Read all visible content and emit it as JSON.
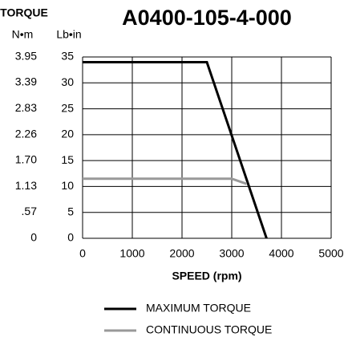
{
  "chart_data": {
    "type": "line",
    "title": "A0400-105-4-000",
    "y_axis_title": "TORQUE",
    "y2_unit": "N•m",
    "y_unit": "Lb•in",
    "x_label": "SPEED (rpm)",
    "xlim": [
      0,
      5000
    ],
    "xticks": [
      0,
      1000,
      2000,
      3000,
      4000,
      5000
    ],
    "ylim": [
      0,
      35
    ],
    "yticks": [
      0,
      5,
      10,
      15,
      20,
      25,
      30,
      35
    ],
    "y2lim": [
      0,
      3.95
    ],
    "y2ticks": [
      0,
      {
        "value": 0.57,
        "label": ".57"
      },
      1.13,
      {
        "value": 1.7,
        "label": "1.70"
      },
      2.26,
      2.83,
      3.39,
      3.95
    ],
    "grid": true,
    "series": [
      {
        "name": "MAXIMUM TORQUE",
        "color": "#000000",
        "x": [
          0,
          2500,
          3700
        ],
        "values": [
          34,
          34,
          0
        ]
      },
      {
        "name": "CONTINUOUS TORQUE",
        "color": "#999999",
        "x": [
          0,
          3000,
          3300
        ],
        "values": [
          11.5,
          11.5,
          10.5
        ]
      }
    ]
  }
}
